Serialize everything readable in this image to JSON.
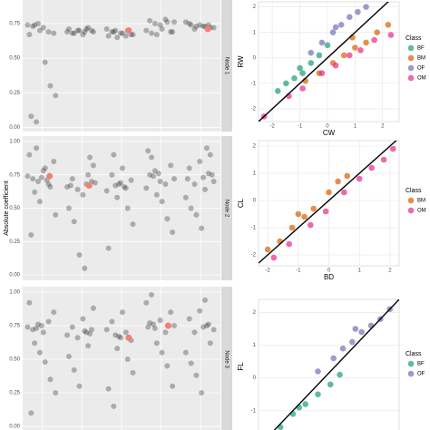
{
  "chart_data": [
    {
      "type": "strip",
      "strip_label": "Node 1",
      "ylim": [
        -0.03,
        0.92
      ],
      "yticks": [
        {
          "value": 0,
          "label": "0.00"
        },
        {
          "value": 0.25,
          "label": "0.25"
        },
        {
          "value": 0.5,
          "label": "0.50"
        },
        {
          "value": 0.75,
          "label": "0.75"
        }
      ],
      "point_color": "#333333",
      "highlight_color": "#f08070",
      "groups": [
        {
          "values": [
            0.74,
            0.73,
            0.75,
            0.72,
            0.69,
            0.68,
            0.67,
            0.74,
            0.7,
            0.47,
            0.3,
            0.23,
            0.08,
            0.04
          ],
          "highlight": null
        },
        {
          "values": [
            0.71,
            0.7,
            0.69,
            0.68,
            0.7,
            0.67,
            0.72,
            0.69,
            0.71,
            0.68,
            0.7,
            0.69
          ],
          "highlight": null
        },
        {
          "values": [
            0.7,
            0.68,
            0.66,
            0.67,
            0.71,
            0.69,
            0.65,
            0.68,
            0.7,
            0.67,
            0.66,
            0.69
          ],
          "highlight": 0.7
        },
        {
          "values": [
            0.76,
            0.77,
            0.75,
            0.74,
            0.78,
            0.69,
            0.7,
            0.68,
            0.67,
            0.71,
            0.76,
            0.69
          ],
          "highlight": null
        },
        {
          "values": [
            0.73,
            0.74,
            0.72,
            0.75,
            0.71,
            0.74,
            0.73,
            0.72,
            0.76,
            0.74,
            0.73
          ],
          "highlight": 0.71
        }
      ]
    },
    {
      "type": "strip",
      "strip_label": "Node 2",
      "ylabel": "Absolute coefficient",
      "ylim": [
        -0.04,
        1.04
      ],
      "yticks": [
        {
          "value": 0,
          "label": "0.00"
        },
        {
          "value": 0.25,
          "label": "0.25"
        },
        {
          "value": 0.5,
          "label": "0.50"
        },
        {
          "value": 0.75,
          "label": "0.75"
        },
        {
          "value": 1,
          "label": "1.00"
        }
      ],
      "point_color": "#333333",
      "highlight_color": "#f08070",
      "groups": [
        {
          "values": [
            0.74,
            0.72,
            0.7,
            0.78,
            0.68,
            0.85,
            0.9,
            0.62,
            0.55,
            0.8,
            0.66,
            0.45,
            0.3,
            0.95,
            0.73,
            0.71
          ],
          "highlight": 0.74
        },
        {
          "values": [
            0.68,
            0.7,
            0.66,
            0.72,
            0.64,
            0.6,
            0.75,
            0.82,
            0.5,
            0.4,
            0.15,
            0.05,
            0.88,
            0.69,
            0.67
          ],
          "highlight": 0.67
        },
        {
          "values": [
            0.67,
            0.69,
            0.65,
            0.71,
            0.63,
            0.75,
            0.58,
            0.8,
            0.5,
            0.38,
            0.2,
            0.9,
            0.68,
            0.66
          ],
          "highlight": null
        },
        {
          "values": [
            0.72,
            0.75,
            0.78,
            0.7,
            0.68,
            0.82,
            0.65,
            0.88,
            0.6,
            0.55,
            0.42,
            0.32,
            0.93,
            0.74,
            0.76
          ],
          "highlight": null
        },
        {
          "values": [
            0.73,
            0.76,
            0.7,
            0.8,
            0.68,
            0.85,
            0.64,
            0.9,
            0.58,
            0.5,
            0.45,
            0.35,
            0.95,
            0.75,
            0.72
          ],
          "highlight": null
        }
      ]
    },
    {
      "type": "strip",
      "strip_label": "Node 3",
      "ylim": [
        -0.04,
        1.04
      ],
      "yticks": [
        {
          "value": 0,
          "label": "0.00"
        },
        {
          "value": 0.25,
          "label": "0.25"
        },
        {
          "value": 0.5,
          "label": "0.50"
        },
        {
          "value": 0.75,
          "label": "0.75"
        },
        {
          "value": 1,
          "label": "1.00"
        }
      ],
      "point_color": "#333333",
      "highlight_color": "#f08070",
      "groups": [
        {
          "values": [
            0.74,
            0.72,
            0.76,
            0.7,
            0.78,
            0.85,
            0.92,
            0.62,
            0.55,
            0.48,
            0.35,
            0.25,
            0.1,
            0.73,
            0.75
          ],
          "highlight": null
        },
        {
          "values": [
            0.7,
            0.72,
            0.68,
            0.74,
            0.66,
            0.8,
            0.6,
            0.88,
            0.52,
            0.42,
            0.3,
            0.71,
            0.69
          ],
          "highlight": null
        },
        {
          "values": [
            0.68,
            0.66,
            0.7,
            0.64,
            0.72,
            0.78,
            0.58,
            0.85,
            0.5,
            0.4,
            0.28,
            0.15,
            0.67
          ],
          "highlight": 0.66
        },
        {
          "values": [
            0.75,
            0.77,
            0.73,
            0.79,
            0.7,
            0.85,
            0.92,
            0.98,
            0.62,
            0.55,
            0.45,
            0.3,
            0.74,
            0.76
          ],
          "highlight": 0.75
        },
        {
          "values": [
            0.74,
            0.76,
            0.72,
            0.8,
            0.7,
            0.86,
            0.94,
            0.62,
            0.55,
            0.47,
            0.38,
            0.25,
            0.75
          ],
          "highlight": null
        }
      ]
    },
    {
      "type": "scatter",
      "xlabel": "CW",
      "ylabel": "RW",
      "legend_title": "Class",
      "xlim": [
        -2.5,
        2.6
      ],
      "ylim": [
        -2.5,
        2.2
      ],
      "xticks": [
        -2,
        -1,
        0,
        1,
        2
      ],
      "yticks": [
        -2,
        -1,
        0,
        1,
        2
      ],
      "fit_line": {
        "intercept": 0,
        "slope": 1
      },
      "series": [
        {
          "name": "BF",
          "color": "#1b9e77",
          "x": [
            -1.8,
            -1.5,
            -1.2,
            -0.9,
            -0.6,
            -0.3,
            0.0,
            -1.0
          ],
          "y": [
            -1.3,
            -1.0,
            -0.8,
            -0.6,
            -0.2,
            0.1,
            0.5,
            -0.4
          ]
        },
        {
          "name": "BM",
          "color": "#d95f02",
          "x": [
            -0.8,
            -0.3,
            0.2,
            0.6,
            1.0,
            1.4,
            1.8,
            2.2,
            0.9
          ],
          "y": [
            -0.9,
            -0.6,
            -0.2,
            0.1,
            0.4,
            0.6,
            1.0,
            1.3,
            0.8
          ]
        },
        {
          "name": "OF",
          "color": "#7570b3",
          "x": [
            -0.6,
            -0.2,
            0.2,
            0.5,
            0.8,
            1.1,
            1.4,
            0.3
          ],
          "y": [
            0.2,
            0.6,
            1.0,
            1.3,
            1.6,
            1.8,
            2.0,
            1.2
          ]
        },
        {
          "name": "OM",
          "color": "#e7298a",
          "x": [
            -1.4,
            -0.9,
            -0.2,
            0.3,
            0.8,
            1.2,
            1.7,
            2.3,
            -2.3
          ],
          "y": [
            -1.5,
            -1.2,
            -0.6,
            -0.3,
            0.1,
            0.3,
            0.7,
            0.9,
            -2.3
          ]
        }
      ]
    },
    {
      "type": "scatter",
      "xlabel": "BD",
      "ylabel": "CL",
      "legend_title": "Class",
      "xlim": [
        -2.3,
        2.3
      ],
      "ylim": [
        -2.4,
        2.2
      ],
      "xticks": [
        -2,
        -1,
        0,
        1,
        2
      ],
      "yticks": [
        -2,
        -1,
        0,
        1,
        2
      ],
      "fit_line": {
        "intercept": 0,
        "slope": 1
      },
      "series": [
        {
          "name": "BM",
          "color": "#d95f02",
          "x": [
            -2.0,
            -1.6,
            -1.2,
            -0.8,
            -0.5,
            0.0,
            0.3,
            0.6,
            -1.0
          ],
          "y": [
            -1.8,
            -1.5,
            -1.0,
            -0.6,
            -0.3,
            0.3,
            0.7,
            0.9,
            -0.5
          ]
        },
        {
          "name": "OM",
          "color": "#e7298a",
          "x": [
            -1.8,
            -1.3,
            -0.6,
            -0.1,
            0.5,
            1.0,
            1.4,
            1.8,
            2.1
          ],
          "y": [
            -2.1,
            -1.6,
            -0.9,
            -0.4,
            0.3,
            0.8,
            1.2,
            1.5,
            1.9
          ]
        }
      ]
    },
    {
      "type": "scatter",
      "ylabel": "FL",
      "legend_title": "Class",
      "xlim": [
        -2.1,
        2.4
      ],
      "ylim": [
        -1.7,
        2.4
      ],
      "yticks": [
        -1,
        0,
        1,
        2
      ],
      "fit_line": {
        "intercept": 0,
        "slope": 1
      },
      "series": [
        {
          "name": "BF",
          "color": "#1b9e77",
          "x": [
            -1.8,
            -1.4,
            -1.0,
            -0.6,
            -0.2,
            0.2,
            0.5,
            -0.8
          ],
          "y": [
            -2.0,
            -1.5,
            -1.1,
            -0.8,
            -0.5,
            -0.2,
            0.1,
            -0.9
          ]
        },
        {
          "name": "OF",
          "color": "#7570b3",
          "x": [
            -0.2,
            0.3,
            0.6,
            0.9,
            1.2,
            1.5,
            1.8,
            2.1,
            1.0
          ],
          "y": [
            0.2,
            0.6,
            0.9,
            1.1,
            1.4,
            1.6,
            1.8,
            2.1,
            1.5
          ]
        }
      ]
    }
  ]
}
